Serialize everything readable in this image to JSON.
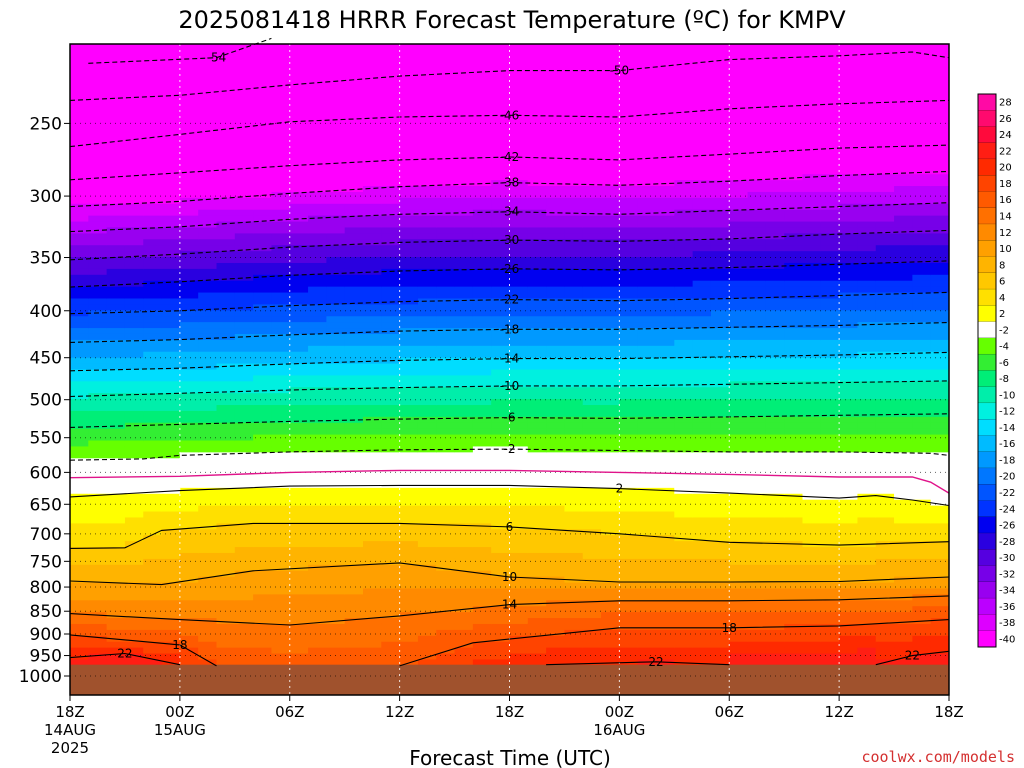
{
  "chart_data": {
    "type": "heatmap",
    "title": "2025081418 HRRR Forecast Temperature (ºC) for KMPV",
    "xlabel": "Forecast Time (UTC)",
    "ylabel": "",
    "watermark": "coolwx.com/models",
    "x_hours": [
      0,
      6,
      12,
      18,
      24,
      30,
      36,
      42,
      48
    ],
    "x_ticks": [
      {
        "hour": 0,
        "lines": [
          "18Z",
          "14AUG",
          "2025"
        ]
      },
      {
        "hour": 6,
        "lines": [
          "00Z",
          "15AUG"
        ]
      },
      {
        "hour": 12,
        "lines": [
          "06Z"
        ]
      },
      {
        "hour": 18,
        "lines": [
          "12Z"
        ]
      },
      {
        "hour": 24,
        "lines": [
          "18Z"
        ]
      },
      {
        "hour": 30,
        "lines": [
          "00Z",
          "16AUG"
        ]
      },
      {
        "hour": 36,
        "lines": [
          "06Z"
        ]
      },
      {
        "hour": 42,
        "lines": [
          "12Z"
        ]
      },
      {
        "hour": 48,
        "lines": [
          "18Z"
        ]
      }
    ],
    "y_ticks": [
      250,
      300,
      350,
      400,
      450,
      500,
      550,
      600,
      650,
      700,
      750,
      800,
      850,
      900,
      950,
      1000
    ],
    "ylim": [
      200,
      1040
    ],
    "ground_level_hpa": 972,
    "colorbar_levels": [
      28,
      26,
      24,
      22,
      20,
      18,
      16,
      14,
      12,
      10,
      8,
      6,
      4,
      2,
      -2,
      -4,
      -6,
      -8,
      -10,
      -12,
      -14,
      -16,
      -18,
      -20,
      -22,
      -24,
      -26,
      -28,
      -30,
      -32,
      -34,
      -36,
      -38,
      -40
    ],
    "colorbar_colors": [
      "#ff0aa5",
      "#ff0a6e",
      "#ff0a3c",
      "#ff1e14",
      "#ff2a00",
      "#ff4400",
      "#ff5a00",
      "#ff7000",
      "#ff8a00",
      "#ffa000",
      "#ffb400",
      "#ffc800",
      "#ffe000",
      "#ffff00",
      "#ffffff",
      "#66ff00",
      "#33ee33",
      "#00ee77",
      "#00eeaa",
      "#00f0e0",
      "#00ddff",
      "#00bbff",
      "#0099ff",
      "#0077ff",
      "#0055ff",
      "#0033ff",
      "#0000f0",
      "#2a00e0",
      "#5500e0",
      "#7700e8",
      "#9900f0",
      "#bb00ff",
      "#dd00ff",
      "#ff00ff"
    ],
    "grid": true,
    "legend": "right",
    "series": [
      {
        "name": "-54",
        "values": [
          [
            1,
            215
          ],
          [
            8,
            212
          ],
          [
            11,
            202
          ]
        ]
      },
      {
        "name": "-50",
        "values": [
          [
            0,
            236
          ],
          [
            6,
            233
          ],
          [
            12,
            227
          ],
          [
            18,
            222
          ],
          [
            24,
            219
          ],
          [
            30,
            219
          ],
          [
            36,
            213
          ],
          [
            42,
            211
          ],
          [
            46,
            209
          ],
          [
            48,
            212
          ]
        ]
      },
      {
        "name": "-46",
        "values": [
          [
            0,
            265
          ],
          [
            6,
            257
          ],
          [
            12,
            249
          ],
          [
            18,
            246
          ],
          [
            24,
            245
          ],
          [
            30,
            246
          ],
          [
            36,
            241
          ],
          [
            42,
            238
          ],
          [
            48,
            236
          ]
        ]
      },
      {
        "name": "-42",
        "values": [
          [
            0,
            288
          ],
          [
            6,
            283
          ],
          [
            12,
            278
          ],
          [
            18,
            274
          ],
          [
            24,
            272
          ],
          [
            30,
            274
          ],
          [
            36,
            270
          ],
          [
            42,
            266
          ],
          [
            48,
            264
          ]
        ]
      },
      {
        "name": "-38",
        "values": [
          [
            0,
            308
          ],
          [
            6,
            304
          ],
          [
            12,
            298
          ],
          [
            18,
            293
          ],
          [
            24,
            290
          ],
          [
            30,
            292
          ],
          [
            36,
            289
          ],
          [
            42,
            285
          ],
          [
            48,
            282
          ]
        ]
      },
      {
        "name": "-34",
        "values": [
          [
            0,
            328
          ],
          [
            6,
            324
          ],
          [
            12,
            318
          ],
          [
            18,
            314
          ],
          [
            24,
            312
          ],
          [
            30,
            314
          ],
          [
            36,
            311
          ],
          [
            42,
            308
          ],
          [
            48,
            305
          ]
        ]
      },
      {
        "name": "-30",
        "values": [
          [
            0,
            352
          ],
          [
            6,
            347
          ],
          [
            12,
            341
          ],
          [
            18,
            337
          ],
          [
            24,
            335
          ],
          [
            30,
            336
          ],
          [
            36,
            334
          ],
          [
            42,
            330
          ],
          [
            48,
            327
          ]
        ]
      },
      {
        "name": "-26",
        "values": [
          [
            0,
            377
          ],
          [
            6,
            372
          ],
          [
            12,
            366
          ],
          [
            18,
            362
          ],
          [
            24,
            360
          ],
          [
            30,
            361
          ],
          [
            36,
            359
          ],
          [
            42,
            356
          ],
          [
            48,
            353
          ]
        ]
      },
      {
        "name": "-22",
        "values": [
          [
            0,
            403
          ],
          [
            6,
            400
          ],
          [
            12,
            395
          ],
          [
            18,
            391
          ],
          [
            24,
            389
          ],
          [
            30,
            390
          ],
          [
            36,
            388
          ],
          [
            42,
            385
          ],
          [
            48,
            382
          ]
        ]
      },
      {
        "name": "-18",
        "values": [
          [
            0,
            433
          ],
          [
            6,
            430
          ],
          [
            12,
            425
          ],
          [
            18,
            421
          ],
          [
            24,
            419
          ],
          [
            30,
            419
          ],
          [
            36,
            417
          ],
          [
            42,
            415
          ],
          [
            48,
            412
          ]
        ]
      },
      {
        "name": "-14",
        "values": [
          [
            0,
            465
          ],
          [
            6,
            462
          ],
          [
            12,
            457
          ],
          [
            18,
            453
          ],
          [
            24,
            451
          ],
          [
            30,
            451
          ],
          [
            36,
            449
          ],
          [
            42,
            447
          ],
          [
            48,
            444
          ]
        ]
      },
      {
        "name": "-10",
        "values": [
          [
            0,
            496
          ],
          [
            6,
            492
          ],
          [
            12,
            488
          ],
          [
            18,
            485
          ],
          [
            24,
            483
          ],
          [
            30,
            483
          ],
          [
            36,
            481
          ],
          [
            42,
            479
          ],
          [
            48,
            477
          ]
        ]
      },
      {
        "name": "-6",
        "values": [
          [
            0,
            536
          ],
          [
            6,
            532
          ],
          [
            12,
            528
          ],
          [
            18,
            525
          ],
          [
            24,
            523
          ],
          [
            30,
            524
          ],
          [
            36,
            522
          ],
          [
            42,
            520
          ],
          [
            48,
            518
          ]
        ]
      },
      {
        "name": "-2",
        "values": [
          [
            0,
            582
          ],
          [
            4,
            580
          ],
          [
            6,
            575
          ],
          [
            12,
            570
          ],
          [
            18,
            567
          ],
          [
            24,
            566
          ],
          [
            30,
            568
          ],
          [
            36,
            570
          ],
          [
            42,
            570
          ],
          [
            47,
            572
          ],
          [
            48,
            575
          ]
        ]
      },
      {
        "name": "0",
        "values": [
          [
            0,
            608
          ],
          [
            6,
            606
          ],
          [
            12,
            600
          ],
          [
            18,
            597
          ],
          [
            24,
            597
          ],
          [
            30,
            600
          ],
          [
            36,
            603
          ],
          [
            42,
            607
          ],
          [
            46,
            607
          ],
          [
            47,
            615
          ],
          [
            48,
            632
          ]
        ]
      },
      {
        "name": "2",
        "values": [
          [
            0,
            638
          ],
          [
            6,
            628
          ],
          [
            12,
            621
          ],
          [
            18,
            620
          ],
          [
            24,
            620
          ],
          [
            30,
            625
          ],
          [
            36,
            632
          ],
          [
            42,
            640
          ],
          [
            44,
            636
          ],
          [
            46,
            643
          ],
          [
            48,
            652
          ]
        ]
      },
      {
        "name": "6",
        "values": [
          [
            0,
            726
          ],
          [
            3,
            725
          ],
          [
            5,
            694
          ],
          [
            10,
            682
          ],
          [
            18,
            682
          ],
          [
            24,
            688
          ],
          [
            30,
            700
          ],
          [
            36,
            715
          ],
          [
            42,
            720
          ],
          [
            48,
            714
          ]
        ]
      },
      {
        "name": "10",
        "values": [
          [
            0,
            788
          ],
          [
            5,
            795
          ],
          [
            10,
            768
          ],
          [
            18,
            753
          ],
          [
            24,
            780
          ],
          [
            30,
            790
          ],
          [
            36,
            790
          ],
          [
            42,
            789
          ],
          [
            48,
            780
          ]
        ]
      },
      {
        "name": "14",
        "values": [
          [
            0,
            855
          ],
          [
            6,
            868
          ],
          [
            12,
            880
          ],
          [
            18,
            860
          ],
          [
            24,
            836
          ],
          [
            30,
            828
          ],
          [
            36,
            828
          ],
          [
            42,
            826
          ],
          [
            48,
            818
          ]
        ]
      },
      {
        "name": "18",
        "values": [
          [
            0,
            902
          ],
          [
            6,
            925
          ],
          [
            8,
            975
          ]
        ]
      },
      {
        "name": "18",
        "values": [
          [
            18,
            975
          ],
          [
            22,
            920
          ],
          [
            30,
            886
          ],
          [
            36,
            886
          ],
          [
            42,
            882
          ],
          [
            48,
            868
          ]
        ]
      },
      {
        "name": "22",
        "values": [
          [
            0,
            955
          ],
          [
            3,
            945
          ],
          [
            6,
            972
          ]
        ]
      },
      {
        "name": "22",
        "values": [
          [
            26,
            972
          ],
          [
            32,
            965
          ],
          [
            36,
            972
          ]
        ]
      },
      {
        "name": "22",
        "values": [
          [
            44,
            972
          ],
          [
            46,
            950
          ],
          [
            48,
            940
          ]
        ]
      }
    ]
  }
}
